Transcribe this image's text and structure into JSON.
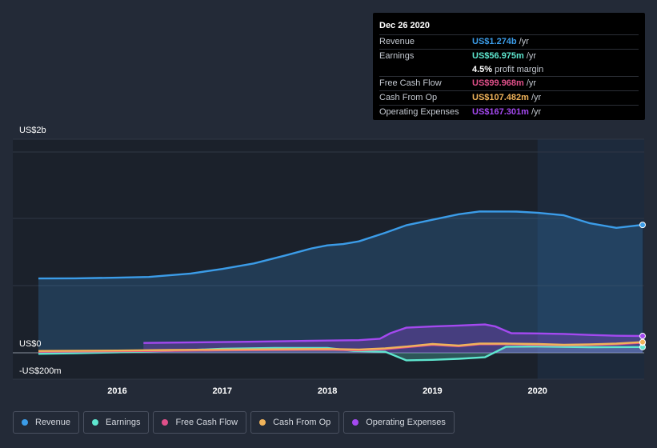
{
  "tooltip": {
    "date": "Dec 26 2020",
    "rows": [
      {
        "label": "Revenue",
        "value": "US$1.274b",
        "unit": "/yr",
        "color": "#3b9ce8"
      },
      {
        "label": "Earnings",
        "value": "US$56.975m",
        "unit": "/yr",
        "color": "#5ee6cf"
      },
      {
        "label": "",
        "value": "4.5%",
        "unit": "profit margin",
        "color": "#ffffff"
      },
      {
        "label": "Free Cash Flow",
        "value": "US$99.968m",
        "unit": "/yr",
        "color": "#e0508a"
      },
      {
        "label": "Cash From Op",
        "value": "US$107.482m",
        "unit": "/yr",
        "color": "#f0b35a"
      },
      {
        "label": "Operating Expenses",
        "value": "US$167.301m",
        "unit": "/yr",
        "color": "#a449f0"
      }
    ]
  },
  "chart_data": {
    "type": "area",
    "y_labels": {
      "top": "US$2b",
      "zero": "US$0",
      "bottom": "-US$200m"
    },
    "ylim": [
      -200,
      2000
    ],
    "xlim": [
      2015.25,
      2021.0
    ],
    "x_ticks": [
      {
        "value": 2016,
        "label": "2016"
      },
      {
        "value": 2017,
        "label": "2017"
      },
      {
        "value": 2018,
        "label": "2018"
      },
      {
        "value": 2019,
        "label": "2019"
      },
      {
        "value": 2020,
        "label": "2020"
      }
    ],
    "highlight_from": 2020.0,
    "series": [
      {
        "name": "Revenue",
        "color": "#3b9ce8",
        "fill": true,
        "x": [
          2015.25,
          2015.6,
          2016.0,
          2016.3,
          2016.7,
          2017.0,
          2017.3,
          2017.6,
          2017.85,
          2018.0,
          2018.15,
          2018.3,
          2018.55,
          2018.75,
          2019.0,
          2019.25,
          2019.45,
          2019.8,
          2020.0,
          2020.25,
          2020.5,
          2020.75,
          2021.0
        ],
        "values": [
          740,
          742,
          748,
          755,
          790,
          835,
          890,
          970,
          1040,
          1070,
          1083,
          1110,
          1195,
          1270,
          1325,
          1380,
          1408,
          1406,
          1395,
          1370,
          1290,
          1245,
          1274
        ]
      },
      {
        "name": "Earnings",
        "color": "#5ee6cf",
        "fill": true,
        "x": [
          2015.25,
          2015.6,
          2016.0,
          2016.5,
          2017.0,
          2017.5,
          2018.0,
          2018.25,
          2018.55,
          2018.75,
          2019.0,
          2019.25,
          2019.5,
          2019.7,
          2020.0,
          2020.5,
          2021.0
        ],
        "values": [
          -10,
          -5,
          5,
          20,
          40,
          48,
          48,
          18,
          10,
          -75,
          -70,
          -60,
          -45,
          60,
          62,
          56,
          57
        ]
      },
      {
        "name": "Free Cash Flow",
        "color": "#e0508a",
        "fill": false,
        "x": [
          2015.25,
          2016.0,
          2016.5,
          2017.0,
          2017.5,
          2018.0,
          2018.3,
          2018.55,
          2018.75,
          2019.0,
          2019.25,
          2019.45,
          2019.7,
          2020.0,
          2020.25,
          2020.5,
          2020.75,
          2021.0
        ],
        "values": [
          10,
          15,
          20,
          25,
          28,
          30,
          25,
          35,
          55,
          80,
          65,
          85,
          85,
          80,
          75,
          78,
          85,
          100
        ]
      },
      {
        "name": "Cash From Op",
        "color": "#f0b35a",
        "fill": false,
        "x": [
          2015.25,
          2016.0,
          2016.5,
          2017.0,
          2017.5,
          2018.0,
          2018.3,
          2018.55,
          2018.75,
          2019.0,
          2019.25,
          2019.45,
          2019.7,
          2020.0,
          2020.25,
          2020.5,
          2020.75,
          2021.0
        ],
        "values": [
          18,
          22,
          28,
          32,
          35,
          38,
          33,
          45,
          62,
          88,
          72,
          92,
          92,
          88,
          80,
          84,
          92,
          107
        ]
      },
      {
        "name": "Operating Expenses",
        "color": "#a449f0",
        "fill": true,
        "x": [
          2016.25,
          2016.75,
          2017.25,
          2017.75,
          2018.0,
          2018.3,
          2018.5,
          2018.6,
          2018.75,
          2019.0,
          2019.25,
          2019.5,
          2019.6,
          2019.75,
          2020.0,
          2020.25,
          2020.5,
          2020.75,
          2021.0
        ],
        "values": [
          98,
          104,
          110,
          118,
          122,
          126,
          140,
          195,
          250,
          262,
          272,
          282,
          262,
          195,
          193,
          188,
          178,
          170,
          167
        ]
      }
    ]
  },
  "legend": [
    {
      "label": "Revenue",
      "color": "#3b9ce8"
    },
    {
      "label": "Earnings",
      "color": "#5ee6cf"
    },
    {
      "label": "Free Cash Flow",
      "color": "#e0508a"
    },
    {
      "label": "Cash From Op",
      "color": "#f0b35a"
    },
    {
      "label": "Operating Expenses",
      "color": "#a449f0"
    }
  ]
}
